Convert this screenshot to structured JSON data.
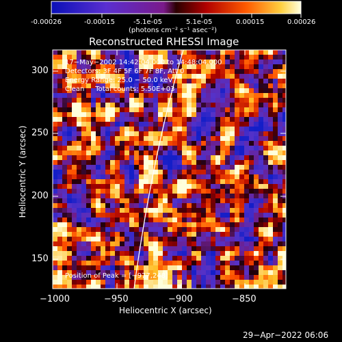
{
  "colorbar": {
    "tick_labels": [
      "-0.00026",
      "-0.00015",
      "-5.1e-05",
      "5.1e-05",
      "0.00015",
      "0.00026"
    ],
    "units": "(photons cm⁻² s⁻¹ asec⁻²)",
    "range": [
      -0.00026,
      0.00026
    ]
  },
  "plot": {
    "title": "Reconstructed RHESSI Image",
    "xlabel": "Heliocentric X (arcsec)",
    "ylabel": "Heliocentric Y (arcsec)",
    "x_ticks": [
      "−1000",
      "−950",
      "−900",
      "−850"
    ],
    "y_ticks": [
      "300",
      "250",
      "200",
      "150"
    ],
    "xlim": [
      -1000,
      -815
    ],
    "ylim": [
      123,
      313
    ]
  },
  "annotation": {
    "time_range": "17−May−2002 14:42:04.000 to 14:48:04.000",
    "detectors": "Detectors: 3F 4F 5F 6F 7F 8F, Att 0",
    "energy": "Energy Range: 25.0 − 50.0 keV",
    "clean": "Clean     Total counts: 5.50E+03",
    "peak": "Position of Peak = [−977,248]"
  },
  "footer": {
    "timestamp": "29−Apr−2022 06:06"
  },
  "chart_data": {
    "type": "heatmap",
    "title": "Reconstructed RHESSI Image",
    "xlabel": "Heliocentric X (arcsec)",
    "ylabel": "Heliocentric Y (arcsec)",
    "xlim": [
      -1000,
      -815
    ],
    "ylim": [
      123,
      313
    ],
    "colorbar_range": [
      -0.00026,
      0.00026
    ],
    "peak_position": [
      -977,
      248
    ]
  }
}
